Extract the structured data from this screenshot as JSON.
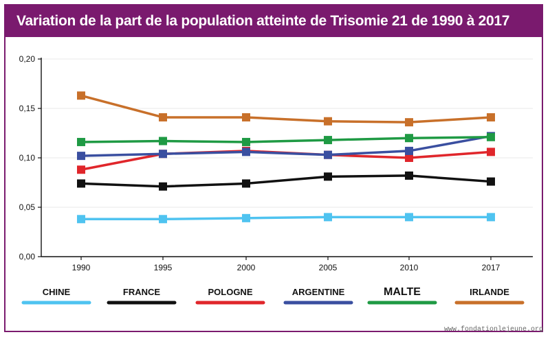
{
  "title": "Variation de la part de la population atteinte de Trisomie 21 de 1990 à 2017",
  "source": "www.fondationlejeune.org",
  "chart_data": {
    "type": "line",
    "title": "Variation de la part de la population atteinte de Trisomie 21 de 1990 à 2017",
    "xlabel": "",
    "ylabel": "",
    "x": [
      "1990",
      "1995",
      "2000",
      "2005",
      "2010",
      "2017"
    ],
    "ylim": [
      0,
      0.2
    ],
    "yticks": [
      "0,00",
      "0,05",
      "0,10",
      "0,15",
      "0,20"
    ],
    "grid": true,
    "legend_position": "bottom",
    "series": [
      {
        "name": "CHINE",
        "color": "#4fc3f0",
        "values": [
          0.038,
          0.038,
          0.039,
          0.04,
          0.04,
          0.04
        ]
      },
      {
        "name": "FRANCE",
        "color": "#111111",
        "values": [
          0.074,
          0.071,
          0.074,
          0.081,
          0.082,
          0.076
        ]
      },
      {
        "name": "POLOGNE",
        "color": "#e0262b",
        "values": [
          0.088,
          0.104,
          0.107,
          0.103,
          0.1,
          0.106
        ]
      },
      {
        "name": "ARGENTINE",
        "color": "#3a4fa0",
        "values": [
          0.102,
          0.104,
          0.106,
          0.103,
          0.107,
          0.122
        ]
      },
      {
        "name": "MALTE",
        "color": "#1f9a44",
        "values": [
          0.116,
          0.117,
          0.116,
          0.118,
          0.12,
          0.121
        ]
      },
      {
        "name": "IRLANDE",
        "color": "#c8702a",
        "values": [
          0.163,
          0.141,
          0.141,
          0.137,
          0.136,
          0.141
        ]
      }
    ]
  }
}
